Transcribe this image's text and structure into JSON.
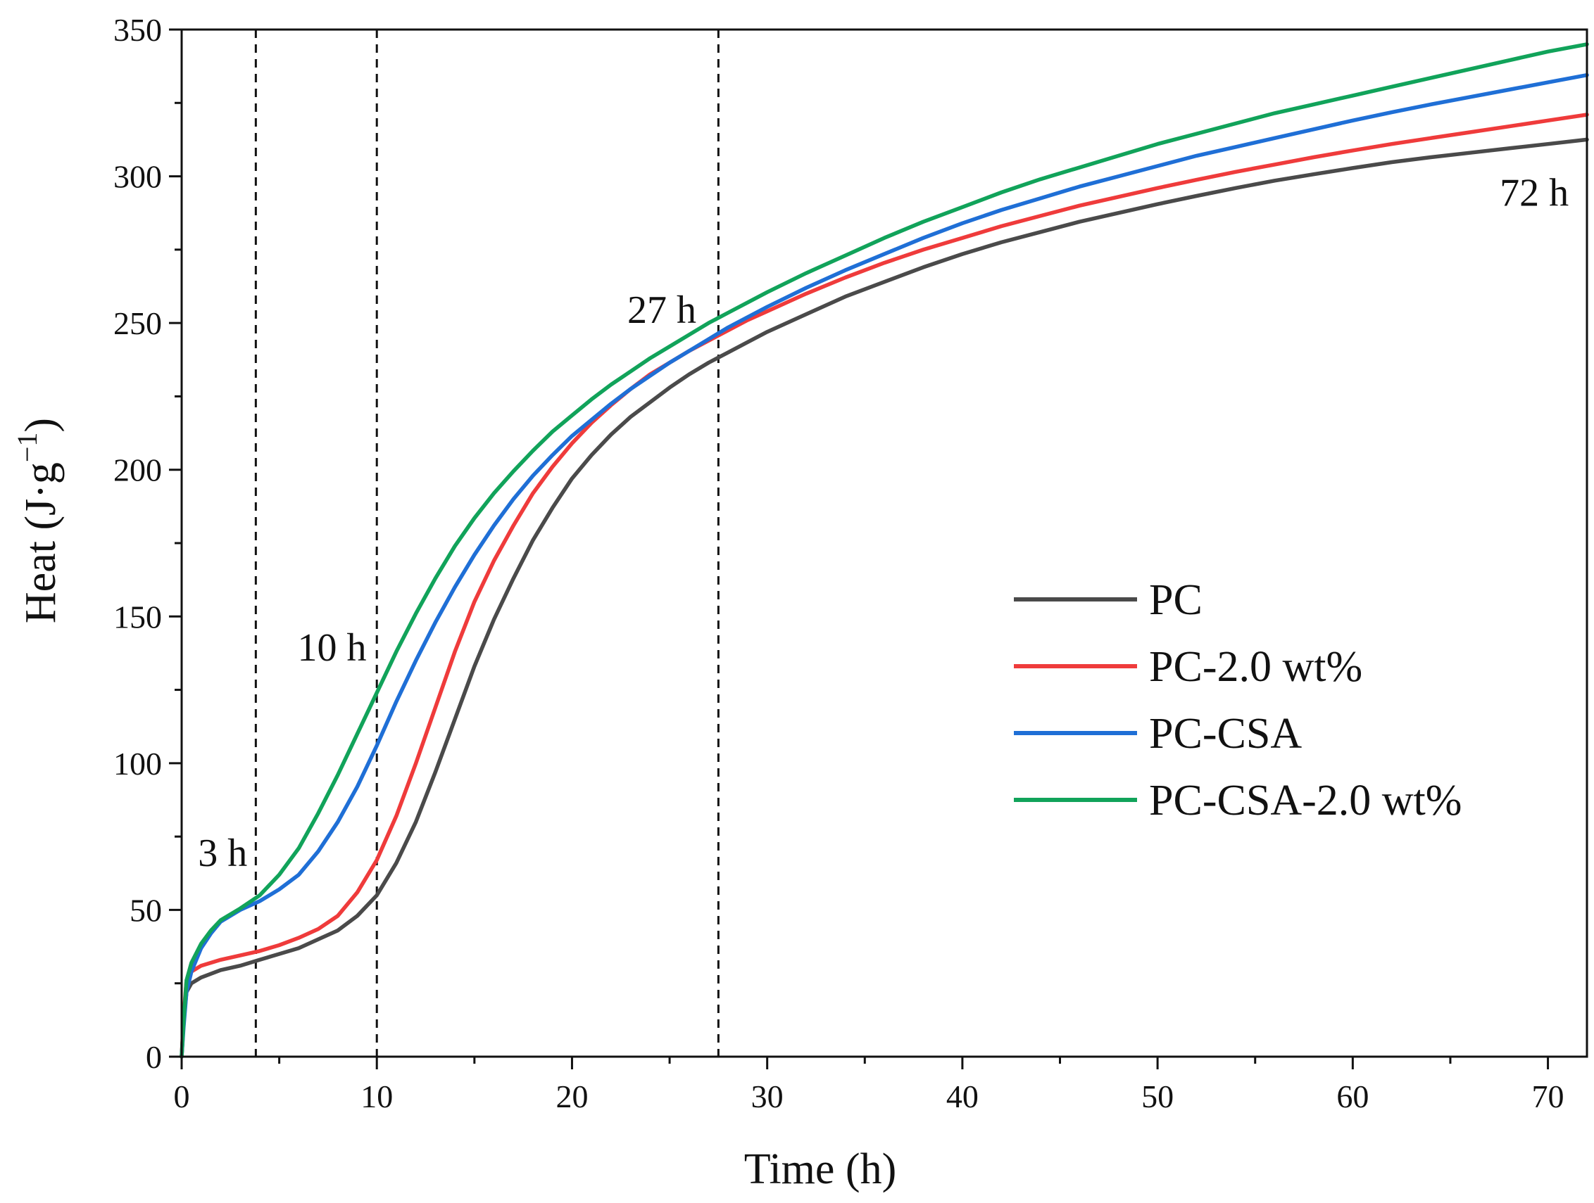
{
  "chart_data": {
    "type": "line",
    "xlabel": "Time (h)",
    "ylabel_main": "Heat (J·g",
    "ylabel_sup": "−1",
    "ylabel_close": ")",
    "xlim": [
      0,
      72
    ],
    "ylim": [
      0,
      350
    ],
    "xticks": [
      0,
      10,
      20,
      30,
      40,
      50,
      60,
      70
    ],
    "yticks": [
      0,
      50,
      100,
      150,
      200,
      250,
      300,
      350
    ],
    "legend_position": "center-right",
    "series": [
      {
        "name": "PC",
        "color": "#4a4a4a",
        "points": [
          [
            0,
            0
          ],
          [
            0.1,
            12
          ],
          [
            0.25,
            22
          ],
          [
            0.5,
            25
          ],
          [
            1,
            27
          ],
          [
            2,
            29.5
          ],
          [
            3,
            31
          ],
          [
            4,
            33
          ],
          [
            5,
            35
          ],
          [
            6,
            37
          ],
          [
            7,
            40
          ],
          [
            8,
            43
          ],
          [
            9,
            48
          ],
          [
            10,
            55
          ],
          [
            11,
            66
          ],
          [
            12,
            80
          ],
          [
            13,
            97
          ],
          [
            14,
            115
          ],
          [
            15,
            133
          ],
          [
            16,
            149
          ],
          [
            17,
            163
          ],
          [
            18,
            176
          ],
          [
            19,
            187
          ],
          [
            20,
            197
          ],
          [
            21,
            205
          ],
          [
            22,
            212
          ],
          [
            23,
            218
          ],
          [
            24,
            223
          ],
          [
            25,
            228
          ],
          [
            26,
            232.5
          ],
          [
            27,
            236.5
          ],
          [
            28,
            240
          ],
          [
            29,
            243.5
          ],
          [
            30,
            247
          ],
          [
            32,
            253
          ],
          [
            34,
            259
          ],
          [
            36,
            264
          ],
          [
            38,
            269
          ],
          [
            40,
            273.5
          ],
          [
            42,
            277.5
          ],
          [
            44,
            281
          ],
          [
            46,
            284.5
          ],
          [
            48,
            287.5
          ],
          [
            50,
            290.5
          ],
          [
            52,
            293.3
          ],
          [
            54,
            296
          ],
          [
            56,
            298.5
          ],
          [
            58,
            300.7
          ],
          [
            60,
            302.8
          ],
          [
            62,
            304.8
          ],
          [
            64,
            306.5
          ],
          [
            66,
            308
          ],
          [
            68,
            309.5
          ],
          [
            70,
            311
          ],
          [
            72,
            312.5
          ]
        ]
      },
      {
        "name": "PC-2.0 wt%",
        "color": "#ef3b3b",
        "points": [
          [
            0,
            0
          ],
          [
            0.1,
            14
          ],
          [
            0.25,
            26
          ],
          [
            0.5,
            29
          ],
          [
            1,
            31
          ],
          [
            2,
            33
          ],
          [
            3,
            34.5
          ],
          [
            4,
            36
          ],
          [
            5,
            38
          ],
          [
            6,
            40.5
          ],
          [
            7,
            43.5
          ],
          [
            8,
            48
          ],
          [
            9,
            56
          ],
          [
            10,
            67
          ],
          [
            11,
            82
          ],
          [
            12,
            100
          ],
          [
            13,
            119
          ],
          [
            14,
            138
          ],
          [
            15,
            155
          ],
          [
            16,
            169
          ],
          [
            17,
            181
          ],
          [
            18,
            192
          ],
          [
            19,
            201
          ],
          [
            20,
            209
          ],
          [
            21,
            216
          ],
          [
            22,
            222
          ],
          [
            23,
            227.5
          ],
          [
            24,
            232.5
          ],
          [
            25,
            236.5
          ],
          [
            26,
            240.5
          ],
          [
            27,
            244
          ],
          [
            28,
            247.5
          ],
          [
            29,
            251
          ],
          [
            30,
            254
          ],
          [
            32,
            260
          ],
          [
            34,
            265.5
          ],
          [
            36,
            270.5
          ],
          [
            38,
            275
          ],
          [
            40,
            279
          ],
          [
            42,
            283
          ],
          [
            44,
            286.5
          ],
          [
            46,
            290
          ],
          [
            48,
            293
          ],
          [
            50,
            296
          ],
          [
            52,
            298.8
          ],
          [
            54,
            301.5
          ],
          [
            56,
            304
          ],
          [
            58,
            306.5
          ],
          [
            60,
            308.8
          ],
          [
            62,
            311
          ],
          [
            64,
            313
          ],
          [
            66,
            315
          ],
          [
            68,
            317
          ],
          [
            70,
            319
          ],
          [
            72,
            321
          ]
        ]
      },
      {
        "name": "PC-CSA",
        "color": "#1f6fd6",
        "points": [
          [
            0,
            0
          ],
          [
            0.1,
            10
          ],
          [
            0.25,
            22
          ],
          [
            0.5,
            29
          ],
          [
            1,
            37
          ],
          [
            1.5,
            42
          ],
          [
            2,
            46
          ],
          [
            3,
            50
          ],
          [
            4,
            53
          ],
          [
            5,
            57
          ],
          [
            6,
            62
          ],
          [
            7,
            70
          ],
          [
            8,
            80
          ],
          [
            9,
            92
          ],
          [
            10,
            106
          ],
          [
            11,
            121
          ],
          [
            12,
            135
          ],
          [
            13,
            148
          ],
          [
            14,
            160
          ],
          [
            15,
            171
          ],
          [
            16,
            181
          ],
          [
            17,
            190
          ],
          [
            18,
            198
          ],
          [
            19,
            205
          ],
          [
            20,
            211.5
          ],
          [
            21,
            217
          ],
          [
            22,
            222.5
          ],
          [
            23,
            227.5
          ],
          [
            24,
            232
          ],
          [
            25,
            236.5
          ],
          [
            26,
            240.5
          ],
          [
            27,
            244.5
          ],
          [
            28,
            248.5
          ],
          [
            29,
            252
          ],
          [
            30,
            255.5
          ],
          [
            32,
            262
          ],
          [
            34,
            268
          ],
          [
            36,
            273.5
          ],
          [
            38,
            279
          ],
          [
            40,
            284
          ],
          [
            42,
            288.5
          ],
          [
            44,
            292.5
          ],
          [
            46,
            296.5
          ],
          [
            48,
            300
          ],
          [
            50,
            303.5
          ],
          [
            52,
            307
          ],
          [
            54,
            310
          ],
          [
            56,
            313
          ],
          [
            58,
            316
          ],
          [
            60,
            319
          ],
          [
            62,
            321.8
          ],
          [
            64,
            324.5
          ],
          [
            66,
            327
          ],
          [
            68,
            329.5
          ],
          [
            70,
            332
          ],
          [
            72,
            334.5
          ]
        ]
      },
      {
        "name": "PC-CSA-2.0 wt%",
        "color": "#11a35a",
        "points": [
          [
            0,
            0
          ],
          [
            0.1,
            12
          ],
          [
            0.25,
            26
          ],
          [
            0.5,
            32
          ],
          [
            1,
            38.5
          ],
          [
            1.5,
            43
          ],
          [
            2,
            46.5
          ],
          [
            3,
            50.5
          ],
          [
            4,
            55
          ],
          [
            5,
            62
          ],
          [
            6,
            71
          ],
          [
            7,
            83
          ],
          [
            8,
            96
          ],
          [
            9,
            110
          ],
          [
            10,
            124
          ],
          [
            11,
            138
          ],
          [
            12,
            151
          ],
          [
            13,
            163
          ],
          [
            14,
            174
          ],
          [
            15,
            183.5
          ],
          [
            16,
            192
          ],
          [
            17,
            199.5
          ],
          [
            18,
            206.5
          ],
          [
            19,
            213
          ],
          [
            20,
            218.5
          ],
          [
            21,
            224
          ],
          [
            22,
            229
          ],
          [
            23,
            233.5
          ],
          [
            24,
            238
          ],
          [
            25,
            242
          ],
          [
            26,
            246
          ],
          [
            27,
            250
          ],
          [
            28,
            253.5
          ],
          [
            29,
            257
          ],
          [
            30,
            260.5
          ],
          [
            32,
            267
          ],
          [
            34,
            273
          ],
          [
            36,
            279
          ],
          [
            38,
            284.5
          ],
          [
            40,
            289.5
          ],
          [
            42,
            294.5
          ],
          [
            44,
            299
          ],
          [
            46,
            303
          ],
          [
            48,
            307
          ],
          [
            50,
            311
          ],
          [
            52,
            314.5
          ],
          [
            54,
            318
          ],
          [
            56,
            321.5
          ],
          [
            58,
            324.5
          ],
          [
            60,
            327.5
          ],
          [
            62,
            330.5
          ],
          [
            64,
            333.5
          ],
          [
            66,
            336.5
          ],
          [
            68,
            339.5
          ],
          [
            70,
            342.5
          ],
          [
            72,
            345
          ]
        ]
      }
    ],
    "vlines": [
      3.8,
      10,
      27.5
    ],
    "annotations": [
      {
        "text": "3 h",
        "x": 2.1,
        "y": 65
      },
      {
        "text": "10 h",
        "x": 7.7,
        "y": 135
      },
      {
        "text": "27 h",
        "x": 24.6,
        "y": 250
      },
      {
        "text": "72 h",
        "x": 69.3,
        "y": 290
      }
    ]
  }
}
